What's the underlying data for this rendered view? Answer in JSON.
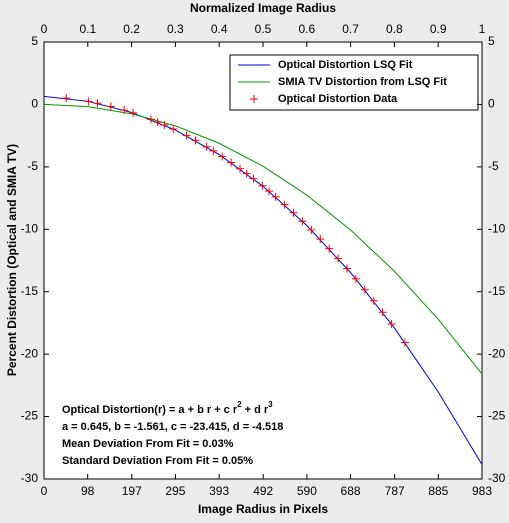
{
  "chart_data": {
    "type": "line",
    "title": "Normalized Image Radius",
    "x_label": "Image Radius in Pixels",
    "y_label": "Percent Distortion (Optical and SMIA TV)",
    "xlim": [
      0,
      983
    ],
    "xticks": [
      0,
      98,
      197,
      295,
      393,
      492,
      590,
      688,
      787,
      885,
      983
    ],
    "x2lim": [
      0,
      1
    ],
    "x2ticks": [
      0,
      0.1,
      0.2,
      0.3,
      0.4,
      0.5,
      0.6,
      0.7,
      0.8,
      0.9,
      1
    ],
    "ylim": [
      -30,
      5
    ],
    "yticks": [
      -30,
      -25,
      -20,
      -15,
      -10,
      -5,
      0,
      5
    ],
    "y2lim": [
      -30,
      5
    ],
    "y2ticks": [
      -30,
      -25,
      -20,
      -15,
      -10,
      -5,
      0,
      5
    ],
    "legend": "upper right",
    "series": [
      {
        "name": "Optical Distortion LSQ Fit",
        "color": "#0000cc",
        "style": "line",
        "x": [
          0,
          98.3,
          196.6,
          294.9,
          393.2,
          491.5,
          589.8,
          688.1,
          786.4,
          884.7,
          983
        ],
        "values": [
          0.645,
          0.25,
          -0.64,
          -2.053,
          -4.015,
          -6.554,
          -9.697,
          -13.471,
          -17.903,
          -23.02,
          -28.849
        ]
      },
      {
        "name": "SMIA TV Distortion from LSQ Fit",
        "color": "#009900",
        "style": "line",
        "x": [
          0,
          98.3,
          196.6,
          294.9,
          393.2,
          491.5,
          589.8,
          688.1,
          786.4,
          884.7,
          983
        ],
        "values": [
          0,
          -0.18,
          -0.75,
          -1.72,
          -3.11,
          -4.95,
          -7.26,
          -10.06,
          -13.36,
          -17.2,
          -21.6
        ]
      },
      {
        "name": "Optical Distortion Data",
        "color": "#ff0000",
        "style": "marker",
        "x": [
          50,
          100,
          120,
          150,
          180,
          200,
          240,
          255,
          270,
          290,
          320,
          340,
          365,
          380,
          400,
          420,
          440,
          455,
          470,
          490,
          505,
          520,
          540,
          560,
          580,
          600,
          620,
          640,
          660,
          680,
          700,
          720,
          740,
          760,
          780,
          810
        ],
        "values": [
          0.504,
          0.239,
          0.097,
          -0.155,
          -0.453,
          -0.681,
          -1.197,
          -1.414,
          -1.644,
          -1.969,
          -2.5,
          -2.884,
          -3.394,
          -3.719,
          -4.171,
          -4.65,
          -5.15,
          -5.543,
          -5.947,
          -6.512,
          -6.948,
          -7.402,
          -8.026,
          -8.679,
          -9.355,
          -10.06,
          -10.787,
          -11.545,
          -12.326,
          -13.137,
          -13.972,
          -14.838,
          -15.727,
          -16.645,
          -17.595,
          -19.067
        ]
      }
    ],
    "annotation_formula": [
      "Optical Distortion(r) = a + b r + c r",
      "2",
      " + d r",
      "3"
    ],
    "annotations": [
      "a = 0.645, b = -1.561, c = -23.415, d = -4.518",
      "Mean Deviation From Fit = 0.03%",
      "Standard Deviation From Fit = 0.05%"
    ]
  }
}
